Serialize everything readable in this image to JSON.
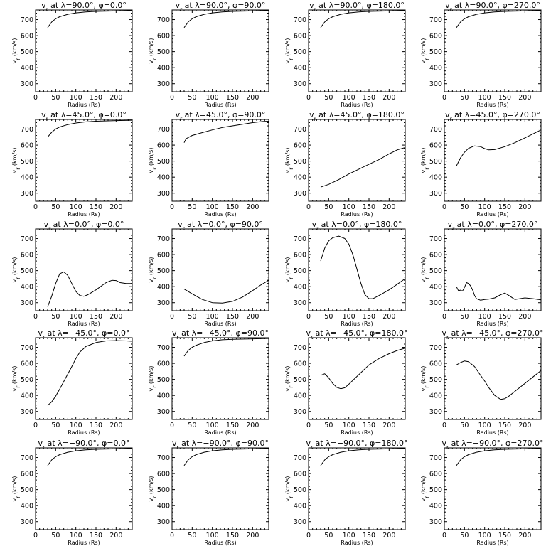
{
  "figure": {
    "xlabel": "Radius (Rs)",
    "ylabel": "v<sub>r</sub> (km/s)"
  },
  "chart_data": [
    {
      "type": "line",
      "title": "v<sub>r</sub> at λ=90.0°, φ=0.0°",
      "xlabel": "Radius (Rs)",
      "ylabel": "v<sub>r</sub> (km/s)",
      "xlim": [
        0,
        240
      ],
      "ylim": [
        250,
        760
      ],
      "xticks": [
        0,
        50,
        100,
        150,
        200
      ],
      "yticks": [
        300,
        400,
        500,
        600,
        700
      ],
      "grid": false,
      "series": [
        {
          "x": [
            30,
            40,
            50,
            60,
            80,
            100,
            125,
            150,
            200,
            240
          ],
          "values": [
            650,
            685,
            705,
            718,
            733,
            742,
            748,
            751,
            754,
            756
          ]
        }
      ]
    },
    {
      "type": "line",
      "title": "v<sub>r</sub> at λ=90.0°, φ=90.0°",
      "xlabel": "Radius (Rs)",
      "ylabel": "v<sub>r</sub> (km/s)",
      "xlim": [
        0,
        240
      ],
      "ylim": [
        250,
        760
      ],
      "xticks": [
        0,
        50,
        100,
        150,
        200
      ],
      "yticks": [
        300,
        400,
        500,
        600,
        700
      ],
      "grid": false,
      "series": [
        {
          "x": [
            30,
            40,
            50,
            60,
            80,
            100,
            125,
            150,
            200,
            240
          ],
          "values": [
            650,
            685,
            705,
            718,
            733,
            742,
            748,
            751,
            754,
            756
          ]
        }
      ]
    },
    {
      "type": "line",
      "title": "v<sub>r</sub> at λ=90.0°, φ=180.0°",
      "xlabel": "Radius (Rs)",
      "ylabel": "v<sub>r</sub> (km/s)",
      "xlim": [
        0,
        240
      ],
      "ylim": [
        250,
        760
      ],
      "xticks": [
        0,
        50,
        100,
        150,
        200
      ],
      "yticks": [
        300,
        400,
        500,
        600,
        700
      ],
      "grid": false,
      "series": [
        {
          "x": [
            30,
            40,
            50,
            60,
            80,
            100,
            125,
            150,
            200,
            240
          ],
          "values": [
            650,
            685,
            705,
            718,
            733,
            742,
            748,
            751,
            754,
            756
          ]
        }
      ]
    },
    {
      "type": "line",
      "title": "v<sub>r</sub> at λ=90.0°, φ=270.0°",
      "xlabel": "Radius (Rs)",
      "ylabel": "v<sub>r</sub> (km/s)",
      "xlim": [
        0,
        240
      ],
      "ylim": [
        250,
        760
      ],
      "xticks": [
        0,
        50,
        100,
        150,
        200
      ],
      "yticks": [
        300,
        400,
        500,
        600,
        700
      ],
      "grid": false,
      "series": [
        {
          "x": [
            30,
            40,
            50,
            60,
            80,
            100,
            125,
            150,
            200,
            240
          ],
          "values": [
            650,
            685,
            705,
            718,
            733,
            742,
            748,
            751,
            754,
            756
          ]
        }
      ]
    },
    {
      "type": "line",
      "title": "v<sub>r</sub> at λ=45.0°, φ=0.0°",
      "xlabel": "Radius (Rs)",
      "ylabel": "v<sub>r</sub> (km/s)",
      "xlim": [
        0,
        240
      ],
      "ylim": [
        250,
        760
      ],
      "xticks": [
        0,
        50,
        100,
        150,
        200
      ],
      "yticks": [
        300,
        400,
        500,
        600,
        700
      ],
      "grid": false,
      "series": [
        {
          "x": [
            30,
            40,
            50,
            60,
            80,
            100,
            125,
            150,
            200,
            240
          ],
          "values": [
            650,
            680,
            700,
            713,
            728,
            738,
            745,
            749,
            753,
            755
          ]
        }
      ]
    },
    {
      "type": "line",
      "title": "v<sub>r</sub> at λ=45.0°, φ=90.0°",
      "xlabel": "Radius (Rs)",
      "ylabel": "v<sub>r</sub> (km/s)",
      "xlim": [
        0,
        240
      ],
      "ylim": [
        250,
        760
      ],
      "xticks": [
        0,
        50,
        100,
        150,
        200
      ],
      "yticks": [
        300,
        400,
        500,
        600,
        700
      ],
      "grid": false,
      "series": [
        {
          "x": [
            30,
            35,
            50,
            75,
            100,
            125,
            150,
            175,
            200,
            225,
            240
          ],
          "values": [
            615,
            640,
            660,
            678,
            695,
            710,
            720,
            730,
            740,
            747,
            749
          ]
        }
      ]
    },
    {
      "type": "line",
      "title": "v<sub>r</sub> at λ=45.0°, φ=180.0°",
      "xlabel": "Radius (Rs)",
      "ylabel": "v<sub>r</sub> (km/s)",
      "xlim": [
        0,
        240
      ],
      "ylim": [
        250,
        760
      ],
      "xticks": [
        0,
        50,
        100,
        150,
        200
      ],
      "yticks": [
        300,
        400,
        500,
        600,
        700
      ],
      "grid": false,
      "series": [
        {
          "x": [
            30,
            50,
            75,
            100,
            125,
            150,
            175,
            200,
            220,
            240
          ],
          "values": [
            338,
            355,
            385,
            420,
            450,
            480,
            510,
            545,
            570,
            585
          ]
        }
      ]
    },
    {
      "type": "line",
      "title": "v<sub>r</sub> at λ=45.0°, φ=270.0°",
      "xlabel": "Radius (Rs)",
      "ylabel": "v<sub>r</sub> (km/s)",
      "xlim": [
        0,
        240
      ],
      "ylim": [
        250,
        760
      ],
      "xticks": [
        0,
        50,
        100,
        150,
        200
      ],
      "yticks": [
        300,
        400,
        500,
        600,
        700
      ],
      "grid": false,
      "series": [
        {
          "x": [
            30,
            40,
            50,
            60,
            75,
            90,
            100,
            110,
            125,
            150,
            175,
            200,
            220,
            240
          ],
          "values": [
            470,
            520,
            555,
            580,
            595,
            590,
            578,
            570,
            572,
            590,
            615,
            645,
            670,
            695
          ]
        }
      ]
    },
    {
      "type": "line",
      "title": "v<sub>r</sub> at λ=0.0°, φ=0.0°",
      "xlabel": "Radius (Rs)",
      "ylabel": "v<sub>r</sub> (km/s)",
      "xlim": [
        0,
        240
      ],
      "ylim": [
        250,
        760
      ],
      "xticks": [
        0,
        50,
        100,
        150,
        200
      ],
      "yticks": [
        300,
        400,
        500,
        600,
        700
      ],
      "grid": false,
      "series": [
        {
          "x": [
            30,
            40,
            50,
            60,
            70,
            80,
            90,
            100,
            110,
            120,
            130,
            150,
            175,
            190,
            200,
            210,
            225,
            240
          ],
          "values": [
            275,
            340,
            420,
            480,
            492,
            470,
            420,
            370,
            345,
            340,
            350,
            380,
            425,
            440,
            438,
            425,
            420,
            420
          ]
        }
      ]
    },
    {
      "type": "line",
      "title": "v<sub>r</sub> at λ=0.0°, φ=90.0°",
      "xlabel": "Radius (Rs)",
      "ylabel": "v<sub>r</sub> (km/s)",
      "xlim": [
        0,
        240
      ],
      "ylim": [
        250,
        760
      ],
      "xticks": [
        0,
        50,
        100,
        150,
        200
      ],
      "yticks": [
        300,
        400,
        500,
        600,
        700
      ],
      "grid": false,
      "series": [
        {
          "x": [
            30,
            50,
            75,
            100,
            125,
            150,
            175,
            200,
            220,
            240
          ],
          "values": [
            385,
            355,
            320,
            300,
            298,
            308,
            335,
            375,
            410,
            440
          ]
        }
      ]
    },
    {
      "type": "line",
      "title": "v<sub>r</sub> at λ=0.0°, φ=180.0°",
      "xlabel": "Radius (Rs)",
      "ylabel": "v<sub>r</sub> (km/s)",
      "xlim": [
        0,
        240
      ],
      "ylim": [
        250,
        760
      ],
      "xticks": [
        0,
        50,
        100,
        150,
        200
      ],
      "yticks": [
        300,
        400,
        500,
        600,
        700
      ],
      "grid": false,
      "series": [
        {
          "x": [
            30,
            40,
            50,
            60,
            75,
            90,
            100,
            110,
            120,
            130,
            140,
            150,
            160,
            175,
            200,
            220,
            240
          ],
          "values": [
            560,
            640,
            685,
            705,
            715,
            700,
            665,
            600,
            510,
            420,
            350,
            325,
            325,
            345,
            380,
            415,
            450
          ]
        }
      ]
    },
    {
      "type": "line",
      "title": "v<sub>r</sub> at λ=0.0°, φ=270.0°",
      "xlabel": "Radius (Rs)",
      "ylabel": "v<sub>r</sub> (km/s)",
      "xlim": [
        0,
        240
      ],
      "ylim": [
        250,
        760
      ],
      "xticks": [
        0,
        50,
        100,
        150,
        200
      ],
      "yticks": [
        300,
        400,
        500,
        600,
        700
      ],
      "grid": false,
      "series": [
        {
          "x": [
            30,
            35,
            40,
            45,
            50,
            55,
            60,
            65,
            70,
            75,
            80,
            90,
            100,
            110,
            125,
            140,
            150,
            160,
            175,
            200,
            220,
            240
          ],
          "values": [
            400,
            375,
            378,
            372,
            395,
            425,
            420,
            405,
            380,
            345,
            325,
            315,
            320,
            322,
            330,
            350,
            360,
            345,
            320,
            330,
            325,
            318
          ]
        }
      ]
    },
    {
      "type": "line",
      "title": "v<sub>r</sub> at λ=−45.0°, φ=0.0°",
      "xlabel": "Radius (Rs)",
      "ylabel": "v<sub>r</sub> (km/s)",
      "xlim": [
        0,
        240
      ],
      "ylim": [
        250,
        760
      ],
      "xticks": [
        0,
        50,
        100,
        150,
        200
      ],
      "yticks": [
        300,
        400,
        500,
        600,
        700
      ],
      "grid": false,
      "series": [
        {
          "x": [
            30,
            40,
            50,
            60,
            75,
            90,
            100,
            110,
            125,
            150,
            175,
            200,
            225,
            240
          ],
          "values": [
            338,
            360,
            395,
            440,
            510,
            580,
            630,
            670,
            705,
            730,
            740,
            742,
            740,
            738
          ]
        }
      ]
    },
    {
      "type": "line",
      "title": "v<sub>r</sub> at λ=−45.0°, φ=90.0°",
      "xlabel": "Radius (Rs)",
      "ylabel": "v<sub>r</sub> (km/s)",
      "xlim": [
        0,
        240
      ],
      "ylim": [
        250,
        760
      ],
      "xticks": [
        0,
        50,
        100,
        150,
        200
      ],
      "yticks": [
        300,
        400,
        500,
        600,
        700
      ],
      "grid": false,
      "series": [
        {
          "x": [
            30,
            40,
            50,
            60,
            80,
            100,
            125,
            150,
            200,
            240
          ],
          "values": [
            645,
            680,
            700,
            713,
            730,
            740,
            747,
            750,
            753,
            755
          ]
        }
      ]
    },
    {
      "type": "line",
      "title": "v<sub>r</sub> at λ=−45.0°, φ=180.0°",
      "xlabel": "Radius (Rs)",
      "ylabel": "v<sub>r</sub> (km/s)",
      "xlim": [
        0,
        240
      ],
      "ylim": [
        250,
        760
      ],
      "xticks": [
        0,
        50,
        100,
        150,
        200
      ],
      "yticks": [
        300,
        400,
        500,
        600,
        700
      ],
      "grid": false,
      "series": [
        {
          "x": [
            30,
            40,
            50,
            60,
            70,
            80,
            90,
            100,
            125,
            150,
            175,
            200,
            220,
            240
          ],
          "values": [
            525,
            535,
            510,
            475,
            450,
            442,
            448,
            470,
            530,
            590,
            630,
            660,
            680,
            695
          ]
        }
      ]
    },
    {
      "type": "line",
      "title": "v<sub>r</sub> at λ=−45.0°, φ=270.0°",
      "xlabel": "Radius (Rs)",
      "ylabel": "v<sub>r</sub> (km/s)",
      "xlim": [
        0,
        240
      ],
      "ylim": [
        250,
        760
      ],
      "xticks": [
        0,
        50,
        100,
        150,
        200
      ],
      "yticks": [
        300,
        400,
        500,
        600,
        700
      ],
      "grid": false,
      "series": [
        {
          "x": [
            30,
            40,
            50,
            60,
            75,
            90,
            100,
            110,
            125,
            140,
            150,
            160,
            175,
            200,
            220,
            240
          ],
          "values": [
            590,
            605,
            615,
            610,
            580,
            525,
            490,
            450,
            400,
            375,
            380,
            395,
            425,
            475,
            515,
            555
          ]
        }
      ]
    },
    {
      "type": "line",
      "title": "v<sub>r</sub> at λ=−90.0°, φ=0.0°",
      "xlabel": "Radius (Rs)",
      "ylabel": "v<sub>r</sub> (km/s)",
      "xlim": [
        0,
        240
      ],
      "ylim": [
        250,
        760
      ],
      "xticks": [
        0,
        50,
        100,
        150,
        200
      ],
      "yticks": [
        300,
        400,
        500,
        600,
        700
      ],
      "grid": false,
      "series": [
        {
          "x": [
            30,
            40,
            50,
            60,
            80,
            100,
            125,
            150,
            200,
            240
          ],
          "values": [
            650,
            685,
            705,
            718,
            733,
            742,
            748,
            751,
            754,
            756
          ]
        }
      ]
    },
    {
      "type": "line",
      "title": "v<sub>r</sub> at λ=−90.0°, φ=90.0°",
      "xlabel": "Radius (Rs)",
      "ylabel": "v<sub>r</sub> (km/s)",
      "xlim": [
        0,
        240
      ],
      "ylim": [
        250,
        760
      ],
      "xticks": [
        0,
        50,
        100,
        150,
        200
      ],
      "yticks": [
        300,
        400,
        500,
        600,
        700
      ],
      "grid": false,
      "series": [
        {
          "x": [
            30,
            40,
            50,
            60,
            80,
            100,
            125,
            150,
            200,
            240
          ],
          "values": [
            650,
            685,
            705,
            718,
            733,
            742,
            748,
            751,
            754,
            756
          ]
        }
      ]
    },
    {
      "type": "line",
      "title": "v<sub>r</sub> at λ=−90.0°, φ=180.0°",
      "xlabel": "Radius (Rs)",
      "ylabel": "v<sub>r</sub> (km/s)",
      "xlim": [
        0,
        240
      ],
      "ylim": [
        250,
        760
      ],
      "xticks": [
        0,
        50,
        100,
        150,
        200
      ],
      "yticks": [
        300,
        400,
        500,
        600,
        700
      ],
      "grid": false,
      "series": [
        {
          "x": [
            30,
            40,
            50,
            60,
            80,
            100,
            125,
            150,
            200,
            240
          ],
          "values": [
            650,
            685,
            705,
            718,
            733,
            742,
            748,
            751,
            754,
            756
          ]
        }
      ]
    },
    {
      "type": "line",
      "title": "v<sub>r</sub> at λ=−90.0°, φ=270.0°",
      "xlabel": "Radius (Rs)",
      "ylabel": "v<sub>r</sub> (km/s)",
      "xlim": [
        0,
        240
      ],
      "ylim": [
        250,
        760
      ],
      "xticks": [
        0,
        50,
        100,
        150,
        200
      ],
      "yticks": [
        300,
        400,
        500,
        600,
        700
      ],
      "grid": false,
      "series": [
        {
          "x": [
            30,
            40,
            50,
            60,
            80,
            100,
            125,
            150,
            200,
            240
          ],
          "values": [
            650,
            685,
            705,
            718,
            733,
            742,
            748,
            751,
            754,
            756
          ]
        }
      ]
    }
  ]
}
